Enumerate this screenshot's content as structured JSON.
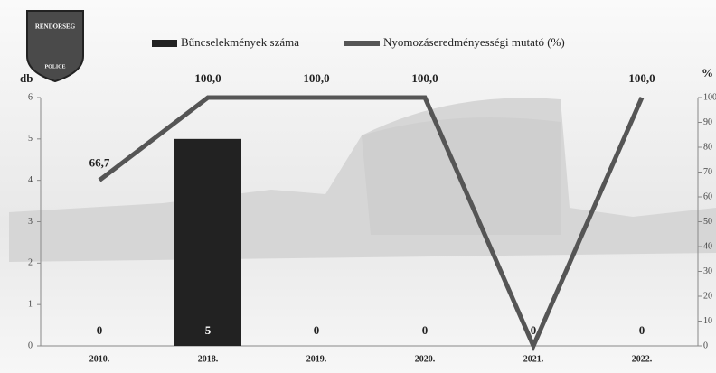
{
  "logo": {
    "top": "RENDŐRSÉG",
    "bottom": "POLICE"
  },
  "chart_data": {
    "type": "bar_line",
    "categories": [
      "2010.",
      "2018.",
      "2019.",
      "2020.",
      "2021.",
      "2022."
    ],
    "series": [
      {
        "name": "Bűncselekmények száma",
        "color": "#222222",
        "values": [
          0,
          5,
          0,
          0,
          0,
          0
        ]
      },
      {
        "name": "Nyomozáseredményességi mutató (%)",
        "color": "#555555",
        "axis": "y2",
        "values": [
          66.7,
          100,
          100,
          100,
          0,
          100
        ],
        "value_labels": [
          "66,7",
          "100,0",
          "100,0",
          "100,0",
          null,
          "100,0"
        ]
      }
    ],
    "ylabel": "db",
    "y2label": "%",
    "ylim": [
      0,
      6
    ],
    "yticks": [
      0,
      1,
      2,
      3,
      4,
      5,
      6
    ],
    "y2lim": [
      0,
      100
    ],
    "y2ticks": [
      0,
      10,
      20,
      30,
      40,
      50,
      60,
      70,
      80,
      90,
      100
    ]
  }
}
